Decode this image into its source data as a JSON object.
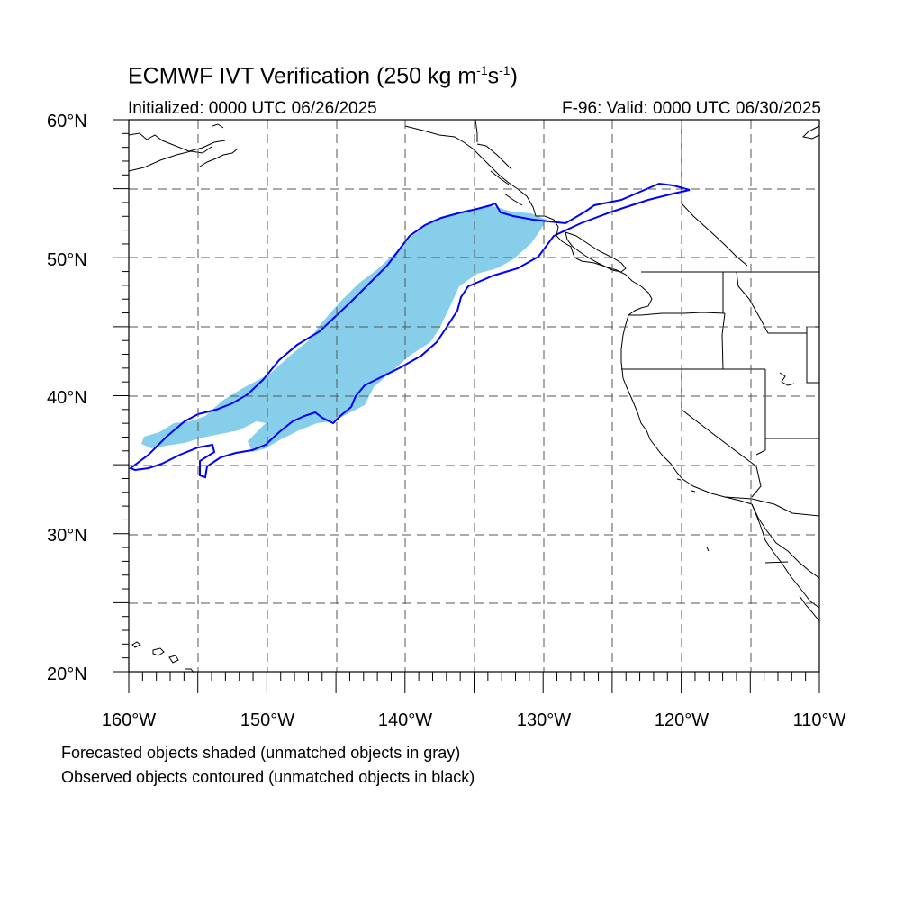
{
  "title": {
    "main": "ECMWF IVT Verification (250 kg m",
    "sup1": "-1",
    "mid": "s",
    "sup2": "-1",
    "end": ")"
  },
  "initialized": "Initialized: 0000 UTC 06/26/2025",
  "valid": "F-96: Valid: 0000 UTC 06/30/2025",
  "map": {
    "projection": "cylindrical-equidistant",
    "lat_range": [
      20,
      60
    ],
    "lon_range": [
      -160,
      -110
    ],
    "grid_spacing_deg": 5,
    "lat_labels": [
      "20°N",
      "30°N",
      "40°N",
      "50°N",
      "60°N"
    ],
    "lon_labels": [
      "160°W",
      "150°W",
      "140°W",
      "130°W",
      "120°W",
      "110°W"
    ],
    "colors": {
      "forecast_fill": "#87CEEB",
      "observed_contour": "#0000FF",
      "coastline": "#000000",
      "grid": "#555555"
    }
  },
  "notes": [
    "Forecasted objects shaded (unmatched objects in gray)",
    "Observed objects contoured (unmatched objects in black)"
  ]
}
